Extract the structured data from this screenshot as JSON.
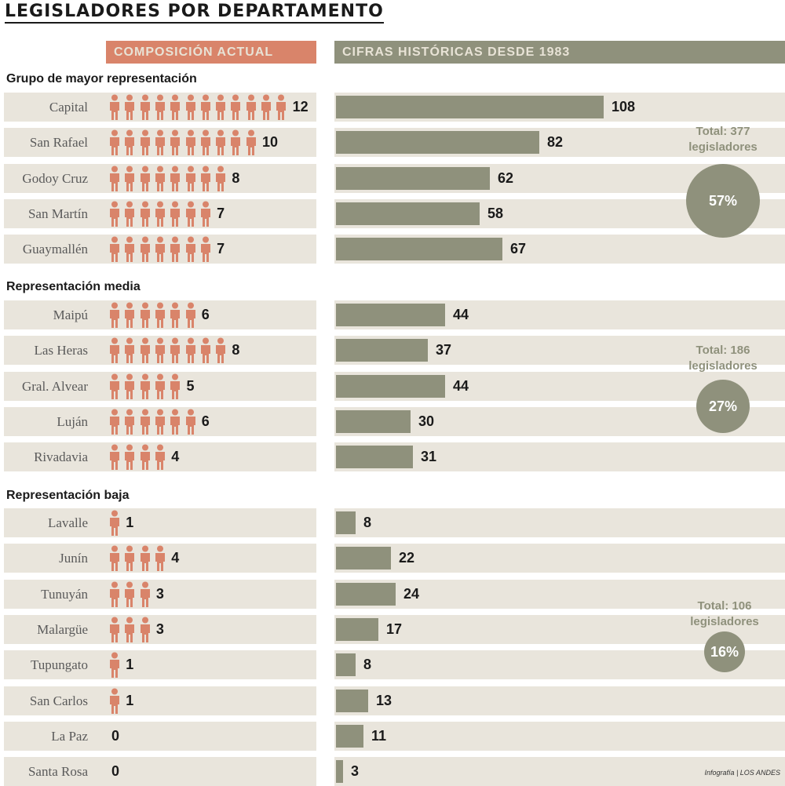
{
  "title": "LEGISLADORES POR DEPARTAMENTO",
  "header_left": "COMPOSICIÓN ACTUAL",
  "header_right": "CIFRAS HISTÓRICAS DESDE 1983",
  "source": "Infografía | LOS ANDES",
  "colors": {
    "figure": "#d9846a",
    "bar": "#8f917c",
    "row_bg": "#e9e5dc"
  },
  "chart_data": {
    "type": "bar",
    "series": [
      {
        "name": "COMPOSICIÓN ACTUAL"
      },
      {
        "name": "CIFRAS HISTÓRICAS DESDE 1983"
      }
    ],
    "groups": [
      {
        "name": "Grupo de mayor representación",
        "total_line1": "Total: 377",
        "total_line2": "legisladores",
        "percent": "57%",
        "rows": [
          {
            "label": "Capital",
            "current": 12,
            "historic": 108
          },
          {
            "label": "San Rafael",
            "current": 10,
            "historic": 82
          },
          {
            "label": "Godoy Cruz",
            "current": 8,
            "historic": 62
          },
          {
            "label": "San Martín",
            "current": 7,
            "historic": 58
          },
          {
            "label": "Guaymallén",
            "current": 7,
            "historic": 67
          }
        ]
      },
      {
        "name": "Representación media",
        "total_line1": "Total: 186",
        "total_line2": "legisladores",
        "percent": "27%",
        "rows": [
          {
            "label": "Maipú",
            "current": 6,
            "historic": 44
          },
          {
            "label": "Las Heras",
            "current": 8,
            "historic": 37
          },
          {
            "label": "Gral. Alvear",
            "current": 5,
            "historic": 44
          },
          {
            "label": "Luján",
            "current": 6,
            "historic": 30
          },
          {
            "label": "Rivadavia",
            "current": 4,
            "historic": 31
          }
        ]
      },
      {
        "name": "Representación baja",
        "total_line1": "Total: 106",
        "total_line2": "legisladores",
        "percent": "16%",
        "rows": [
          {
            "label": "Lavalle",
            "current": 1,
            "historic": 8
          },
          {
            "label": "Junín",
            "current": 4,
            "historic": 22
          },
          {
            "label": "Tunuyán",
            "current": 3,
            "historic": 24
          },
          {
            "label": "Malargüe",
            "current": 3,
            "historic": 17
          },
          {
            "label": "Tupungato",
            "current": 1,
            "historic": 8
          },
          {
            "label": "San Carlos",
            "current": 1,
            "historic": 13
          },
          {
            "label": "La Paz",
            "current": 0,
            "historic": 11
          },
          {
            "label": "Santa Rosa",
            "current": 0,
            "historic": 3
          }
        ]
      }
    ]
  }
}
